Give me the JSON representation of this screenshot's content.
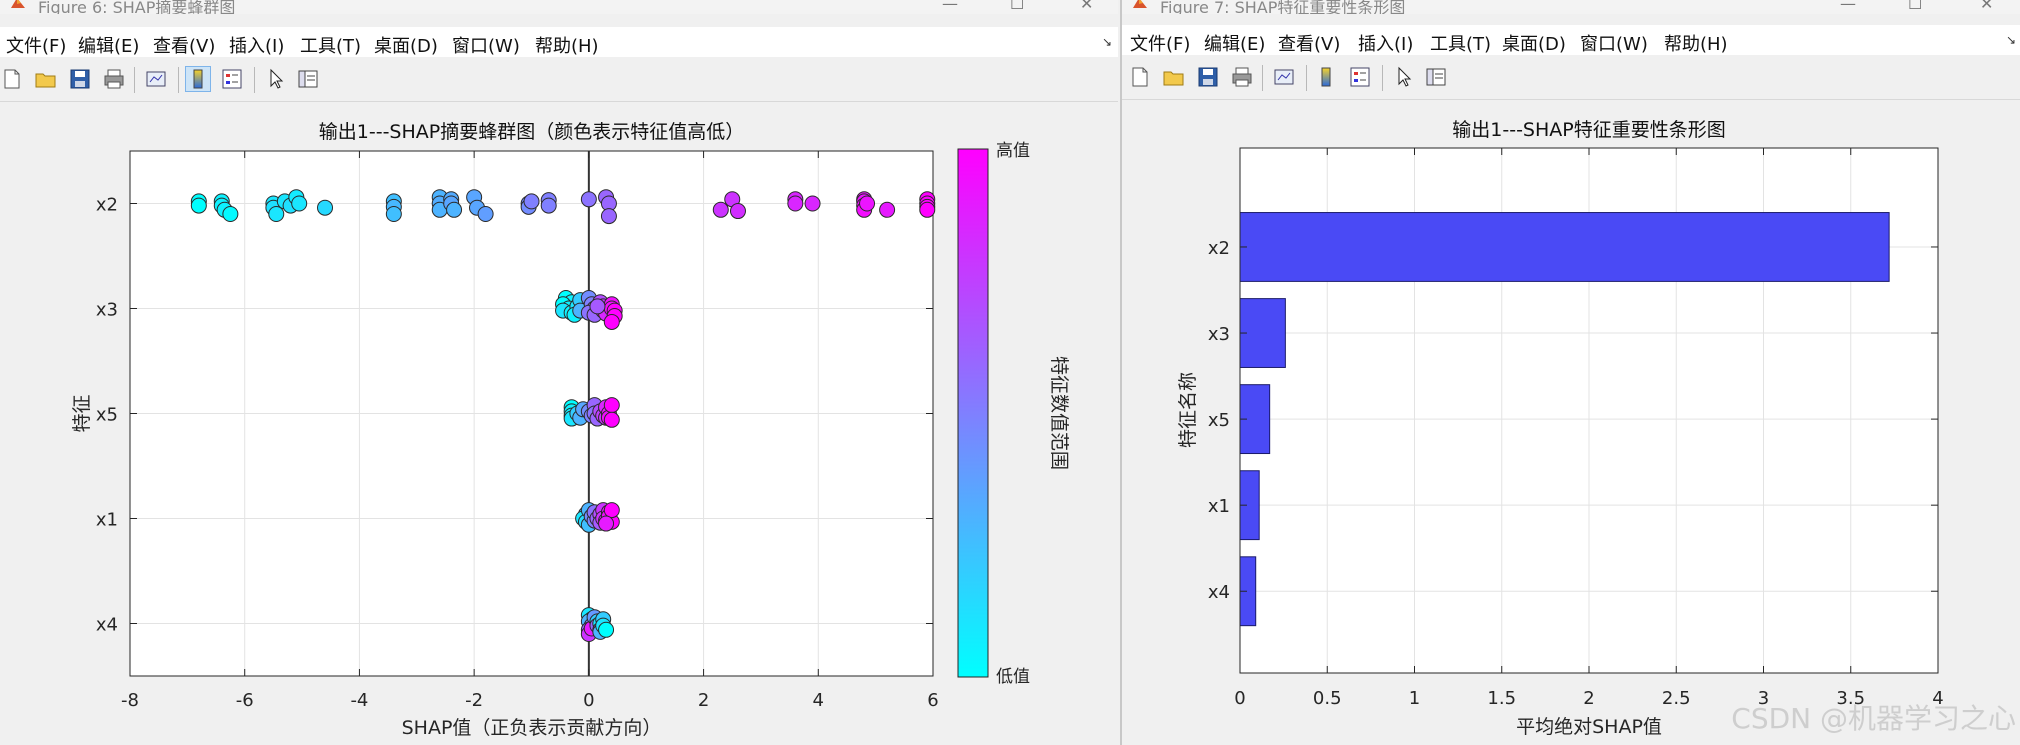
{
  "left": {
    "title": "Figure 6: SHAP摘要蜂群图",
    "menu": [
      "文件(F)",
      "编辑(E)",
      "查看(V)",
      "插入(I)",
      "工具(T)",
      "桌面(D)",
      "窗口(W)",
      "帮助(H)"
    ],
    "toolbar_icons": [
      "new-figure-icon",
      "open-file-icon",
      "save-icon",
      "print-icon",
      "link-plot-icon",
      "colorbar-icon",
      "legend-icon",
      "edit-plot-icon",
      "property-inspector-icon"
    ]
  },
  "right": {
    "title": "Figure 7: SHAP特征重要性条形图",
    "menu": [
      "文件(F)",
      "编辑(E)",
      "查看(V)",
      "插入(I)",
      "工具(T)",
      "桌面(D)",
      "窗口(W)",
      "帮助(H)"
    ],
    "toolbar_icons": [
      "new-figure-icon",
      "open-file-icon",
      "save-icon",
      "print-icon",
      "link-plot-icon",
      "colorbar-icon",
      "legend-icon",
      "edit-plot-icon",
      "property-inspector-icon"
    ]
  },
  "watermark": "CSDN @机器学习之心",
  "colors": {
    "low": "#00ffff",
    "high": "#ff00ff",
    "bar": "#4a4af5"
  },
  "chart_data": [
    {
      "type": "scatter",
      "title": "输出1---SHAP摘要蜂群图（颜色表示特征值高低）",
      "xlabel": "SHAP值（正负表示贡献方向）",
      "ylabel": "特征",
      "xlim": [
        -8,
        6
      ],
      "xticks": [
        -8,
        -6,
        -4,
        -2,
        0,
        2,
        4,
        6
      ],
      "categories": [
        "x2",
        "x3",
        "x5",
        "x1",
        "x4"
      ],
      "grid": true,
      "zero_line": true,
      "colorbar": {
        "label": "特征数值范围",
        "high_label": "高值",
        "low_label": "低值"
      },
      "series": [
        {
          "feature": "x2",
          "points": [
            [
              -6.8,
              0.05,
              0.0
            ],
            [
              -6.8,
              -0.05,
              0.0
            ],
            [
              -6.4,
              0.05,
              0.05
            ],
            [
              -6.4,
              -0.05,
              0.05
            ],
            [
              -6.35,
              -0.15,
              0.05
            ],
            [
              -6.25,
              -0.25,
              0.02
            ],
            [
              -5.5,
              0.0,
              0.1
            ],
            [
              -5.5,
              -0.1,
              0.12
            ],
            [
              -5.45,
              -0.25,
              0.1
            ],
            [
              -5.3,
              0.05,
              0.1
            ],
            [
              -5.2,
              -0.05,
              0.12
            ],
            [
              -5.1,
              0.15,
              0.08
            ],
            [
              -5.05,
              0.0,
              0.1
            ],
            [
              -4.6,
              -0.1,
              0.15
            ],
            [
              -3.4,
              0.05,
              0.25
            ],
            [
              -3.4,
              -0.08,
              0.28
            ],
            [
              -3.4,
              -0.25,
              0.25
            ],
            [
              -2.6,
              0.15,
              0.3
            ],
            [
              -2.6,
              0.0,
              0.32
            ],
            [
              -2.6,
              -0.15,
              0.3
            ],
            [
              -2.4,
              0.1,
              0.33
            ],
            [
              -2.4,
              0.0,
              0.35
            ],
            [
              -2.35,
              -0.15,
              0.3
            ],
            [
              -2.0,
              0.15,
              0.35
            ],
            [
              -1.95,
              -0.1,
              0.35
            ],
            [
              -1.8,
              -0.25,
              0.38
            ],
            [
              -1.05,
              0.0,
              0.45
            ],
            [
              -1.05,
              -0.08,
              0.45
            ],
            [
              -1.0,
              0.05,
              0.5
            ],
            [
              -0.7,
              0.08,
              0.5
            ],
            [
              -0.7,
              -0.05,
              0.5
            ],
            [
              0.0,
              0.1,
              0.55
            ],
            [
              0.3,
              0.15,
              0.6
            ],
            [
              0.35,
              0.0,
              0.6
            ],
            [
              0.35,
              -0.3,
              0.6
            ],
            [
              2.3,
              -0.15,
              0.8
            ],
            [
              2.5,
              0.1,
              0.8
            ],
            [
              2.6,
              -0.18,
              0.82
            ],
            [
              3.6,
              0.1,
              0.85
            ],
            [
              3.6,
              0.0,
              0.85
            ],
            [
              3.9,
              0.0,
              0.85
            ],
            [
              4.8,
              0.1,
              0.9
            ],
            [
              4.8,
              0.05,
              0.92
            ],
            [
              4.8,
              -0.05,
              0.92
            ],
            [
              4.8,
              -0.15,
              0.95
            ],
            [
              4.85,
              0.0,
              0.92
            ],
            [
              5.2,
              -0.15,
              0.9
            ],
            [
              5.9,
              0.1,
              1.0
            ],
            [
              5.9,
              0.0,
              1.0
            ],
            [
              5.9,
              -0.08,
              1.0
            ],
            [
              5.9,
              -0.15,
              1.0
            ]
          ]
        },
        {
          "feature": "x3",
          "points": [
            [
              -0.4,
              0.25,
              0.0
            ],
            [
              -0.3,
              0.15,
              0.05
            ],
            [
              -0.45,
              0.1,
              0.0
            ],
            [
              -0.35,
              0.0,
              0.05
            ],
            [
              -0.45,
              -0.05,
              0.1
            ],
            [
              -0.3,
              -0.1,
              0.05
            ],
            [
              -0.2,
              0.05,
              0.1
            ],
            [
              -0.25,
              -0.15,
              0.05
            ],
            [
              -0.15,
              0.2,
              0.2
            ],
            [
              -0.15,
              -0.05,
              0.3
            ],
            [
              0.0,
              0.25,
              0.45
            ],
            [
              0.05,
              0.1,
              0.5
            ],
            [
              0.1,
              0.0,
              0.6
            ],
            [
              0.0,
              -0.1,
              0.55
            ],
            [
              0.1,
              -0.15,
              0.6
            ],
            [
              0.2,
              0.15,
              0.7
            ],
            [
              0.25,
              0.05,
              0.75
            ],
            [
              0.25,
              -0.05,
              0.8
            ],
            [
              0.3,
              -0.12,
              0.85
            ],
            [
              0.4,
              0.1,
              0.95
            ],
            [
              0.4,
              0.0,
              0.95
            ],
            [
              0.45,
              -0.05,
              1.0
            ],
            [
              0.45,
              -0.18,
              1.0
            ],
            [
              0.4,
              -0.32,
              1.0
            ],
            [
              0.15,
              0.05,
              0.65
            ]
          ]
        },
        {
          "feature": "x5",
          "points": [
            [
              -0.3,
              0.15,
              0.0
            ],
            [
              -0.3,
              0.05,
              0.05
            ],
            [
              -0.3,
              -0.05,
              0.05
            ],
            [
              -0.3,
              -0.12,
              0.1
            ],
            [
              -0.2,
              0.0,
              0.2
            ],
            [
              -0.15,
              -0.1,
              0.3
            ],
            [
              -0.1,
              0.1,
              0.35
            ],
            [
              0.0,
              0.05,
              0.45
            ],
            [
              0.05,
              -0.05,
              0.5
            ],
            [
              0.1,
              0.2,
              0.6
            ],
            [
              0.1,
              0.0,
              0.55
            ],
            [
              0.15,
              -0.12,
              0.6
            ],
            [
              0.2,
              0.05,
              0.7
            ],
            [
              0.25,
              -0.05,
              0.75
            ],
            [
              0.3,
              0.15,
              0.85
            ],
            [
              0.3,
              -0.1,
              0.8
            ],
            [
              0.35,
              0.0,
              0.9
            ],
            [
              0.35,
              -0.1,
              0.95
            ],
            [
              0.4,
              0.2,
              1.0
            ],
            [
              0.4,
              -0.15,
              1.0
            ]
          ]
        },
        {
          "feature": "x1",
          "points": [
            [
              -0.05,
              0.1,
              0.2
            ],
            [
              -0.1,
              0.0,
              0.1
            ],
            [
              -0.05,
              -0.08,
              0.15
            ],
            [
              0.0,
              0.2,
              0.3
            ],
            [
              0.0,
              -0.15,
              0.25
            ],
            [
              0.05,
              0.05,
              0.45
            ],
            [
              0.1,
              -0.05,
              0.5
            ],
            [
              0.1,
              0.15,
              0.55
            ],
            [
              0.15,
              0.0,
              0.6
            ],
            [
              0.2,
              0.1,
              0.7
            ],
            [
              0.2,
              -0.1,
              0.65
            ],
            [
              0.25,
              0.2,
              0.8
            ],
            [
              0.25,
              0.0,
              0.8
            ],
            [
              0.3,
              -0.05,
              0.85
            ],
            [
              0.35,
              0.15,
              0.9
            ],
            [
              0.35,
              0.05,
              0.95
            ],
            [
              0.4,
              -0.08,
              1.0
            ],
            [
              0.4,
              0.2,
              1.0
            ],
            [
              0.3,
              -0.12,
              0.9
            ]
          ]
        },
        {
          "feature": "x4",
          "points": [
            [
              0.0,
              0.2,
              0.1
            ],
            [
              0.05,
              0.1,
              0.15
            ],
            [
              0.0,
              0.05,
              0.3
            ],
            [
              0.05,
              -0.05,
              0.5
            ],
            [
              0.0,
              -0.15,
              0.6
            ],
            [
              0.0,
              -0.25,
              0.8
            ],
            [
              0.05,
              -0.12,
              0.9
            ],
            [
              0.1,
              0.15,
              0.4
            ],
            [
              0.15,
              0.05,
              0.2
            ],
            [
              0.15,
              -0.05,
              0.6
            ],
            [
              0.2,
              0.0,
              0.1
            ],
            [
              0.2,
              -0.15,
              0.5
            ],
            [
              0.2,
              -0.2,
              0.3
            ],
            [
              0.25,
              0.1,
              0.2
            ],
            [
              0.25,
              -0.05,
              0.1
            ],
            [
              0.3,
              -0.15,
              0.0
            ]
          ]
        }
      ]
    },
    {
      "type": "bar",
      "orientation": "horizontal",
      "title": "输出1---SHAP特征重要性条形图",
      "xlabel": "平均绝对SHAP值",
      "ylabel": "特征名称",
      "xlim": [
        0,
        4
      ],
      "xticks": [
        0,
        0.5,
        1,
        1.5,
        2,
        2.5,
        3,
        3.5,
        4
      ],
      "categories": [
        "x2",
        "x3",
        "x5",
        "x1",
        "x4"
      ],
      "values": [
        3.72,
        0.26,
        0.17,
        0.11,
        0.09
      ],
      "grid": true
    }
  ]
}
